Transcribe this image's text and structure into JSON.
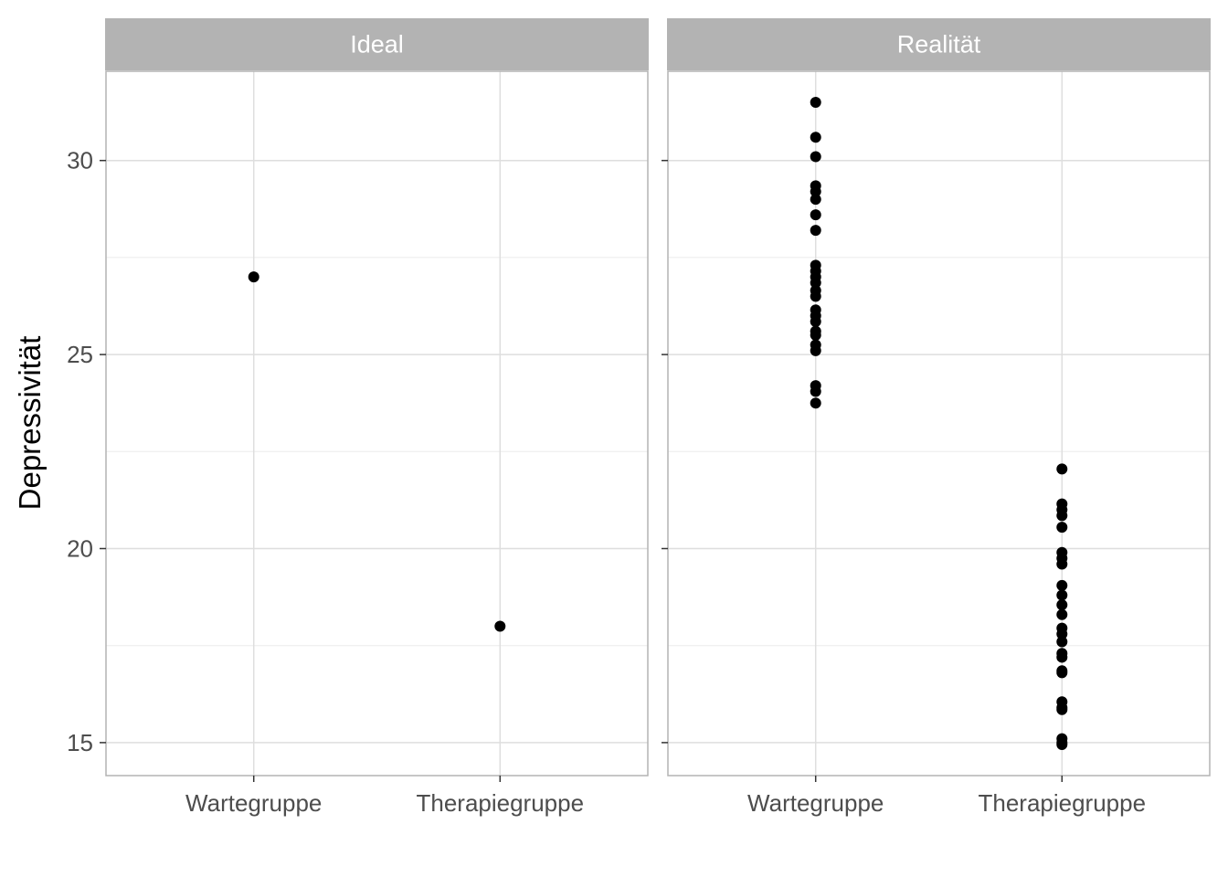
{
  "chart_data": {
    "type": "scatter",
    "ylabel": "Depressivität",
    "xlabel": "",
    "ylim": [
      14.15,
      32.3
    ],
    "yticks": [
      15,
      20,
      25,
      30
    ],
    "categories": [
      "Wartegruppe",
      "Therapiegruppe"
    ],
    "grid": true,
    "point_color": "#000000",
    "panels": [
      {
        "name": "Ideal",
        "series": [
          {
            "category": "Wartegruppe",
            "values": [
              27.0
            ]
          },
          {
            "category": "Therapiegruppe",
            "values": [
              18.0
            ]
          }
        ]
      },
      {
        "name": "Realität",
        "series": [
          {
            "category": "Wartegruppe",
            "values": [
              31.5,
              30.6,
              30.1,
              29.35,
              29.2,
              29.0,
              28.6,
              28.2,
              27.3,
              27.15,
              27.0,
              26.85,
              26.65,
              26.5,
              26.15,
              26.0,
              25.85,
              25.6,
              25.5,
              25.25,
              25.1,
              24.2,
              24.05,
              23.75
            ]
          },
          {
            "category": "Therapiegruppe",
            "values": [
              22.05,
              21.15,
              21.0,
              20.85,
              20.55,
              19.9,
              19.75,
              19.6,
              19.05,
              18.8,
              18.55,
              18.3,
              17.95,
              17.8,
              17.6,
              17.3,
              17.2,
              16.85,
              16.8,
              16.05,
              15.9,
              15.85,
              15.1,
              15.0,
              14.95
            ]
          }
        ]
      }
    ]
  }
}
